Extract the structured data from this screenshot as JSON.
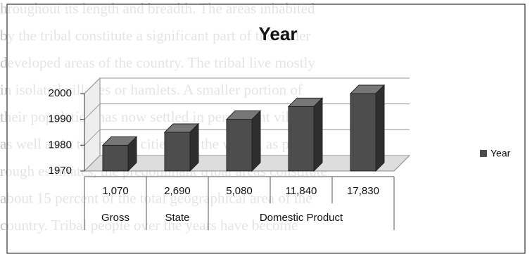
{
  "background_text": [
    "hroughout its length and breadth. The areas inhabited",
    "by the tribal constitute a significant part of the under",
    "developed areas of the country. The tribal live mostly",
    "in isolated villages or hamlets. A smaller portion of",
    "their population has now settled in permanent villages",
    "as well as in towns and cities. On the whole, as per",
    "rough estimates, the predominant tribal areas constitute",
    "about 15 percent of the total geographical area of the",
    "country. Tribal people over the years have become"
  ],
  "chart_data": {
    "type": "bar3d",
    "title": "Year",
    "category_groups": [
      {
        "label": "Gross",
        "categories": [
          "1,070"
        ]
      },
      {
        "label": "State",
        "categories": [
          "2,690"
        ]
      },
      {
        "label": "Domestic Product",
        "categories": [
          "5,080",
          "11,840",
          "17,830"
        ]
      }
    ],
    "series": [
      {
        "name": "Year",
        "color": "#4d4d4d",
        "values": [
          1980,
          1985,
          1990,
          1995,
          2000
        ]
      }
    ],
    "ylim": [
      1970,
      2000
    ],
    "yticks": [
      1970,
      1980,
      1990,
      2000
    ],
    "grid": true,
    "legend": "right"
  }
}
